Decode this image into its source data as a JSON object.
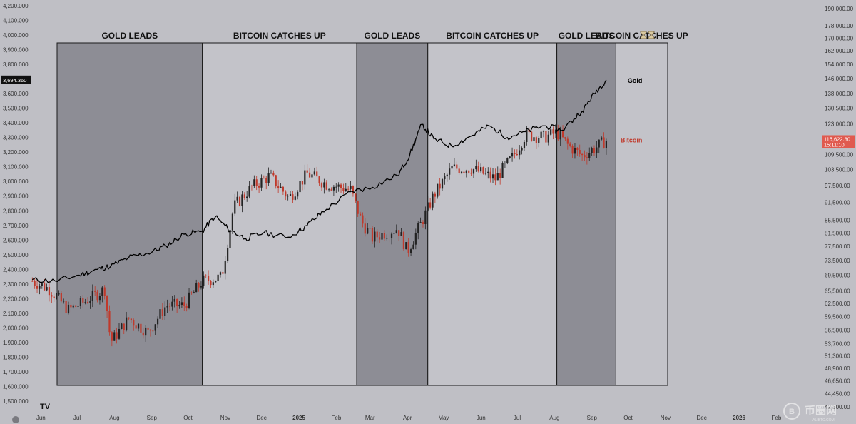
{
  "chart_data": {
    "type": "line",
    "colors": {
      "gold": "#000000",
      "bitcoin": "#c0392b",
      "bitcoin_up": "#222222",
      "dark_zone": "#8d8d95",
      "light_zone": "#c3c3c9",
      "background": "#bfbfc5"
    },
    "left_axis": {
      "ticks": [
        "4,200.000",
        "4,100.000",
        "4,000.000",
        "3,900.000",
        "3,800.000",
        "3,700.000",
        "3,600.000",
        "3,500.000",
        "3,400.000",
        "3,300.000",
        "3,200.000",
        "3,100.000",
        "3,000.000",
        "2,900.000",
        "2,800.000",
        "2,700.000",
        "2,600.000",
        "2,500.000",
        "2,400.000",
        "2,300.000",
        "2,200.000",
        "2,100.000",
        "2,000.000",
        "1,900.000",
        "1,800.000",
        "1,700.000",
        "1,600.000",
        "1,500.000"
      ],
      "ylim": [
        1500,
        4200
      ]
    },
    "right_axis": {
      "ticks": [
        "190,000.00",
        "178,000.00",
        "170,000.00",
        "162,000.00",
        "154,000.00",
        "146,000.00",
        "138,000.00",
        "130,500.00",
        "123,000.00",
        "115,622.80",
        "109,500.00",
        "103,500.00",
        "97,500.00",
        "91,500.00",
        "85,500.00",
        "81,500.00",
        "77,500.00",
        "73,500.00",
        "69,500.00",
        "65,500.00",
        "62,500.00",
        "59,500.00",
        "56,500.00",
        "53,700.00",
        "51,300.00",
        "48,900.00",
        "46,650.00",
        "44,450.00",
        "42,300.00"
      ],
      "scale": "log"
    },
    "x_axis": {
      "ticks": [
        "Jun",
        "Jul",
        "Aug",
        "Sep",
        "Oct",
        "Nov",
        "Dec",
        "2025",
        "Feb",
        "Mar",
        "Apr",
        "May",
        "Jun",
        "Jul",
        "Aug",
        "Sep",
        "Oct",
        "Nov",
        "Dec",
        "2026",
        "Feb"
      ]
    },
    "phases": [
      {
        "label": "GOLD LEADS",
        "shade": "dark"
      },
      {
        "label": "BITCOIN CATCHES UP",
        "shade": "light"
      },
      {
        "label": "GOLD LEADS",
        "shade": "dark"
      },
      {
        "label": "BITCOIN CATCHES UP",
        "shade": "light"
      },
      {
        "label": "GOLD LEADS",
        "shade": "dark"
      },
      {
        "label": "BITCOIN CATCHES UP",
        "shade": "light"
      }
    ],
    "series": [
      {
        "name": "Gold",
        "axis": "left",
        "x": [
          "2024-06-01",
          "2024-06-20",
          "2024-07-10",
          "2024-07-25",
          "2024-08-05",
          "2024-08-20",
          "2024-09-05",
          "2024-09-20",
          "2024-10-05",
          "2024-10-20",
          "2024-10-31",
          "2024-11-10",
          "2024-11-25",
          "2024-12-10",
          "2024-12-31",
          "2025-01-15",
          "2025-01-31",
          "2025-02-20",
          "2025-03-10",
          "2025-03-31",
          "2025-04-10",
          "2025-04-20",
          "2025-04-30",
          "2025-05-15",
          "2025-05-31",
          "2025-06-15",
          "2025-06-30",
          "2025-07-15",
          "2025-07-31",
          "2025-08-15",
          "2025-08-31",
          "2025-09-10",
          "2025-09-20"
        ],
        "y": [
          2330,
          2320,
          2360,
          2400,
          2420,
          2480,
          2510,
          2560,
          2640,
          2660,
          2760,
          2680,
          2610,
          2650,
          2620,
          2700,
          2810,
          2930,
          2960,
          3040,
          3180,
          3390,
          3290,
          3240,
          3310,
          3380,
          3300,
          3340,
          3380,
          3350,
          3480,
          3600,
          3694
        ]
      },
      {
        "name": "Bitcoin",
        "axis": "right",
        "x": [
          "2024-06-01",
          "2024-06-15",
          "2024-07-01",
          "2024-07-15",
          "2024-07-31",
          "2024-08-05",
          "2024-08-20",
          "2024-09-05",
          "2024-09-20",
          "2024-10-05",
          "2024-10-20",
          "2024-11-05",
          "2024-11-15",
          "2024-11-30",
          "2024-12-15",
          "2024-12-31",
          "2025-01-15",
          "2025-01-31",
          "2025-02-20",
          "2025-03-01",
          "2025-03-10",
          "2025-03-31",
          "2025-04-08",
          "2025-04-20",
          "2025-04-30",
          "2025-05-15",
          "2025-05-31",
          "2025-06-20",
          "2025-07-05",
          "2025-07-15",
          "2025-07-31",
          "2025-08-10",
          "2025-08-20",
          "2025-08-31",
          "2025-09-10",
          "2025-09-20"
        ],
        "y": [
          68000,
          66000,
          61000,
          63000,
          66000,
          54000,
          59000,
          56000,
          62000,
          62000,
          68000,
          69000,
          90000,
          97000,
          101000,
          93000,
          102000,
          98000,
          96000,
          85000,
          80000,
          83000,
          76000,
          85000,
          94000,
          104000,
          104000,
          100000,
          109000,
          118000,
          117000,
          119000,
          113000,
          109000,
          112000,
          115622
        ]
      }
    ],
    "price_tags": {
      "gold": "3,694.360",
      "bitcoin_price": "115,622.80",
      "bitcoin_time": "15:11:10"
    },
    "legend_placement": "inline labels at line ends"
  },
  "watermark": {
    "text": "币圈网",
    "subtext": "—— ALIBTC.COM ——"
  },
  "logo": {
    "text": "TV"
  }
}
